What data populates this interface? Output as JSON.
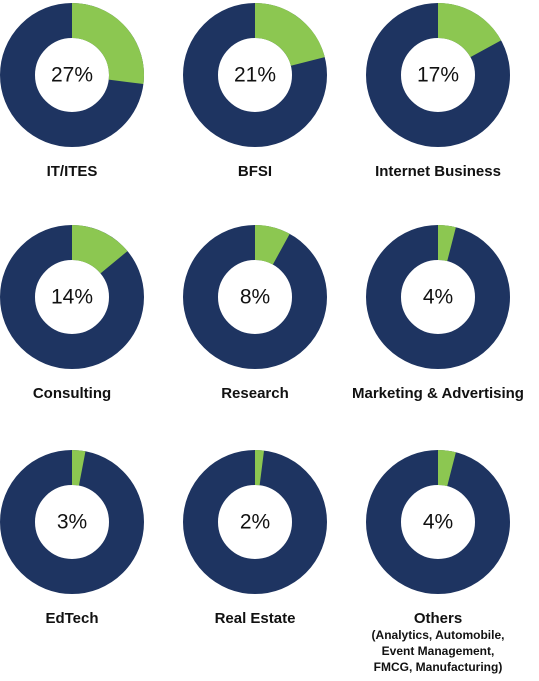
{
  "chart_data": [
    {
      "type": "donut",
      "title": "IT/ITES",
      "values": [
        27
      ],
      "value_labels": [
        "27%"
      ],
      "color": "#8cc751",
      "ring_color": "#1e3461"
    },
    {
      "type": "donut",
      "title": "BFSI",
      "values": [
        21
      ],
      "value_labels": [
        "21%"
      ],
      "color": "#8cc751",
      "ring_color": "#1e3461"
    },
    {
      "type": "donut",
      "title": "Internet Business",
      "values": [
        17
      ],
      "value_labels": [
        "17%"
      ],
      "color": "#8cc751",
      "ring_color": "#1e3461"
    },
    {
      "type": "donut",
      "title": "Consulting",
      "values": [
        14
      ],
      "value_labels": [
        "14%"
      ],
      "color": "#8cc751",
      "ring_color": "#1e3461"
    },
    {
      "type": "donut",
      "title": "Research",
      "values": [
        8
      ],
      "value_labels": [
        "8%"
      ],
      "color": "#8cc751",
      "ring_color": "#1e3461"
    },
    {
      "type": "donut",
      "title": "Marketing & Advertising",
      "values": [
        4
      ],
      "value_labels": [
        "4%"
      ],
      "color": "#8cc751",
      "ring_color": "#1e3461"
    },
    {
      "type": "donut",
      "title": "EdTech",
      "values": [
        3
      ],
      "value_labels": [
        "3%"
      ],
      "color": "#8cc751",
      "ring_color": "#1e3461"
    },
    {
      "type": "donut",
      "title": "Real Estate",
      "values": [
        2
      ],
      "value_labels": [
        "2%"
      ],
      "color": "#8cc751",
      "ring_color": "#1e3461"
    },
    {
      "type": "donut",
      "title": "Others",
      "subtitle": [
        "(Analytics, Automobile,",
        "Event Management,",
        "FMCG, Manufacturing)"
      ],
      "values": [
        4
      ],
      "value_labels": [
        "4%"
      ],
      "color": "#8cc751",
      "ring_color": "#1e3461"
    }
  ]
}
